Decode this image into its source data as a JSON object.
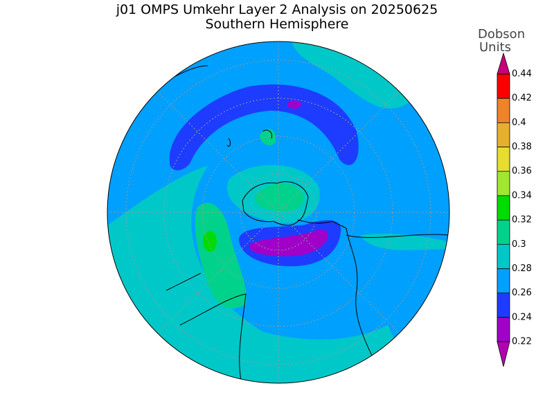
{
  "title": "j01 OMPS Umkehr Layer 2 Analysis on 20250625",
  "subtitle": "Southern Hemisphere",
  "colorbar": {
    "unit_label": [
      "Dobson",
      "Units"
    ],
    "ticks": [
      0.22,
      0.24,
      0.26,
      0.28,
      0.3,
      0.32,
      0.34,
      0.36,
      0.38,
      0.4,
      0.42,
      0.44
    ],
    "lim": [
      0.22,
      0.44
    ],
    "colors": [
      "#a000c8",
      "#1e3cff",
      "#00a0ff",
      "#00c8c8",
      "#00d28c",
      "#00dc00",
      "#a0e632",
      "#e6dc32",
      "#e6af2d",
      "#f08228",
      "#fa0000"
    ],
    "under_color": "#b400b4",
    "over_color": "#c8007a"
  }
}
